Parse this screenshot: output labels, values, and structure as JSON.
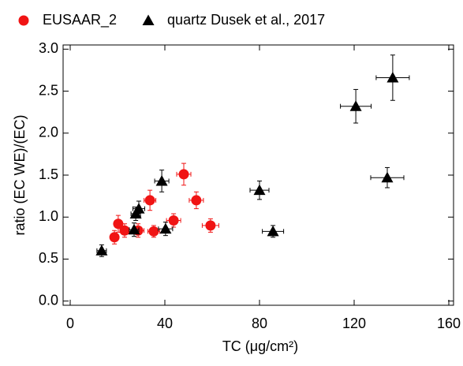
{
  "chart_data": {
    "type": "scatter",
    "xlabel": "TC (μg/cm²)",
    "ylabel": "ratio (EC WE)/(EC)",
    "xlim": [
      -3,
      162
    ],
    "ylim": [
      -0.05,
      3.05
    ],
    "xticks": [
      0,
      40,
      80,
      120,
      160
    ],
    "yticks": [
      {
        "value": 0,
        "label": "0.0"
      },
      0.5,
      {
        "value": 1,
        "label": "1.0"
      },
      1.5,
      {
        "value": 2,
        "label": "2.0"
      },
      2.5,
      {
        "value": 3,
        "label": "3.0"
      }
    ],
    "legend": "top",
    "series": [
      {
        "name": "EUSAAR_2",
        "color": "#f01414",
        "marker": "circle",
        "x": [
          18.7,
          20.3,
          23,
          28.7,
          33.7,
          35.3,
          43.7,
          48,
          53.3,
          59.3
        ],
        "values": [
          0.76,
          0.92,
          0.84,
          0.84,
          1.2,
          0.83,
          0.96,
          1.51,
          1.2,
          0.9
        ],
        "xerr": [
          1.5,
          1.5,
          2,
          2.5,
          2.5,
          2.5,
          3,
          3,
          3,
          3.5
        ],
        "yerr": [
          0.08,
          0.1,
          0.08,
          0.08,
          0.12,
          0.07,
          0.08,
          0.13,
          0.1,
          0.08
        ]
      },
      {
        "name": "quartz Dusek et al., 2017",
        "color": "#000000",
        "marker": "triangle",
        "x": [
          13.3,
          27,
          27.7,
          29,
          38.7,
          40.3,
          80,
          85.7,
          120.7,
          134,
          136.3
        ],
        "values": [
          0.6,
          0.85,
          1.04,
          1.1,
          1.43,
          0.86,
          1.32,
          0.83,
          2.32,
          1.47,
          2.66
        ],
        "xerr": [
          2,
          2,
          2,
          2.5,
          3,
          3,
          4,
          4.5,
          6.5,
          7,
          7
        ],
        "yerr": [
          0.07,
          0.08,
          0.08,
          0.09,
          0.13,
          0.08,
          0.11,
          0.07,
          0.2,
          0.12,
          0.27
        ]
      }
    ]
  }
}
